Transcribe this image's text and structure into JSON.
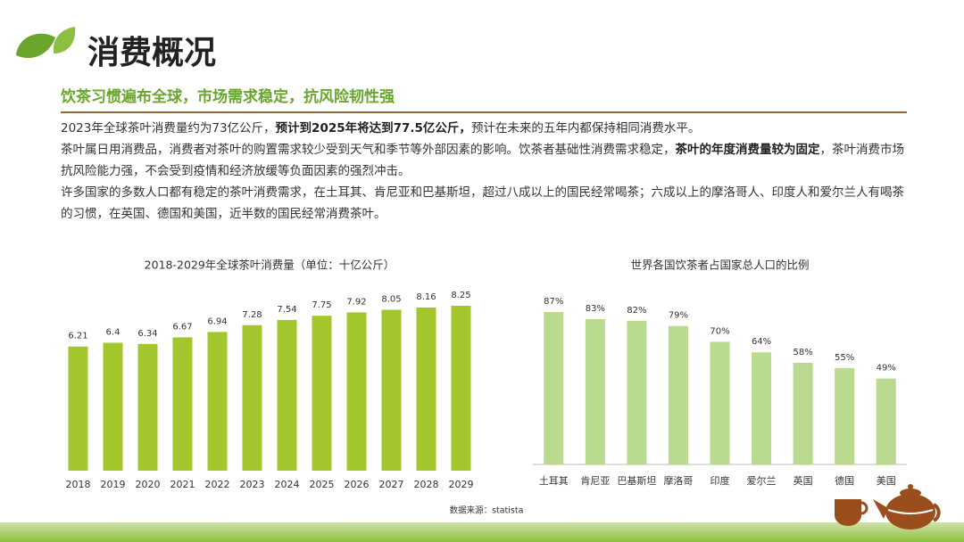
{
  "header": {
    "title": "消费概况",
    "subtitle": "饮茶习惯遍布全球，市场需求稳定，抗风险韧性强"
  },
  "paragraphs": [
    [
      {
        "text": "2023年全球茶叶消费量约为73亿公斤，",
        "bold": false
      },
      {
        "text": "预计到2025年将达到77.5亿公斤，",
        "bold": true
      },
      {
        "text": "预计在未来的五年内都保持相同消费水平。",
        "bold": false
      }
    ],
    [
      {
        "text": "茶叶属日用消费品，消费者对茶叶的购置需求较少受到天气和季节等外部因素的影响。饮茶者基础性消费需求稳定，",
        "bold": false
      },
      {
        "text": "茶叶的年度消费量较为固定",
        "bold": true
      },
      {
        "text": "，茶叶消费市场抗风险能力强，不会受到疫情和经济放缓等负面因素的强烈冲击。",
        "bold": false
      }
    ],
    [
      {
        "text": "许多国家的多数人口都有稳定的茶叶消费需求，在土耳其、肯尼亚和巴基斯坦，超过八成以上的国民经常喝茶；六成以上的摩洛哥人、印度人和爱尔兰人有喝茶的习惯，在英国、德国和美国，近半数的国民经常消费茶叶。",
        "bold": false
      }
    ]
  ],
  "chart_data": [
    {
      "type": "bar",
      "title": "2018-2029年全球茶叶消费量（单位：十亿公斤）",
      "categories": [
        "2018",
        "2019",
        "2020",
        "2021",
        "2022",
        "2023",
        "2024",
        "2025",
        "2026",
        "2027",
        "2028",
        "2029"
      ],
      "values": [
        6.21,
        6.4,
        6.34,
        6.67,
        6.94,
        7.28,
        7.54,
        7.75,
        7.92,
        8.05,
        8.16,
        8.25
      ],
      "color": "#a2c62b",
      "baseline": false
    },
    {
      "type": "bar",
      "title": "世界各国饮茶者占国家总人口的比例",
      "categories": [
        "土耳其",
        "肯尼亚",
        "巴基斯坦",
        "摩洛哥",
        "印度",
        "爱尔兰",
        "英国",
        "德国",
        "美国"
      ],
      "values": [
        87,
        83,
        82,
        79,
        70,
        64,
        58,
        55,
        49
      ],
      "value_labels": [
        "87%",
        "83%",
        "82%",
        "79%",
        "70%",
        "64%",
        "58%",
        "55%",
        "49%"
      ],
      "color": "#b9da8f",
      "baseline": true
    }
  ],
  "source": "数据来源：statista"
}
